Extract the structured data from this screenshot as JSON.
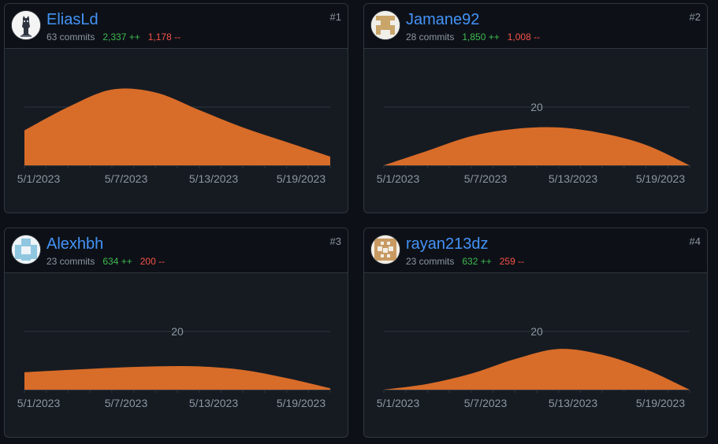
{
  "colors": {
    "area": "#d86c29",
    "grid": "#30363d",
    "axis": "#30363d",
    "link": "#4493f8",
    "adds": "#3fb950",
    "dels": "#f85149"
  },
  "contributors": [
    {
      "rank": "#1",
      "username": "EliasLd",
      "commits": "63 commits",
      "additions": "2,337 ++",
      "deletions": "1,178 --",
      "avatar_icon": "knight-avatar-icon"
    },
    {
      "rank": "#2",
      "username": "Jamane92",
      "commits": "28 commits",
      "additions": "1,850 ++",
      "deletions": "1,008 --",
      "avatar_icon": "identicon-gold-icon"
    },
    {
      "rank": "#3",
      "username": "Alexhbh",
      "commits": "23 commits",
      "additions": "634 ++",
      "deletions": "200 --",
      "avatar_icon": "identicon-lightblue-icon"
    },
    {
      "rank": "#4",
      "username": "rayan213dz",
      "commits": "23 commits",
      "additions": "632 ++",
      "deletions": "259 --",
      "avatar_icon": "identicon-tan-icon"
    }
  ],
  "chart_data": [
    {
      "type": "area",
      "x": [
        "5/1/2023",
        "5/4/2023",
        "5/7/2023",
        "5/10/2023",
        "5/13/2023",
        "5/16/2023",
        "5/19/2023",
        "5/22/2023"
      ],
      "values": [
        12,
        20,
        26,
        25,
        19,
        13,
        8,
        3
      ],
      "x_tick_labels": [
        "5/1/2023",
        "5/7/2023",
        "5/13/2023",
        "5/19/2023"
      ],
      "grid_label": "",
      "ylim": [
        0,
        40
      ],
      "grid": true
    },
    {
      "type": "area",
      "x": [
        "5/1/2023",
        "5/4/2023",
        "5/7/2023",
        "5/10/2023",
        "5/13/2023",
        "5/16/2023",
        "5/19/2023",
        "5/22/2023"
      ],
      "values": [
        0,
        5,
        10,
        12.5,
        13,
        11,
        7,
        0
      ],
      "x_tick_labels": [
        "5/1/2023",
        "5/7/2023",
        "5/13/2023",
        "5/19/2023"
      ],
      "grid_label": "20",
      "ylim": [
        0,
        40
      ],
      "grid": true
    },
    {
      "type": "area",
      "x": [
        "5/1/2023",
        "5/4/2023",
        "5/7/2023",
        "5/10/2023",
        "5/13/2023",
        "5/16/2023",
        "5/19/2023",
        "5/22/2023"
      ],
      "values": [
        6,
        6.8,
        7.5,
        8,
        8,
        6.8,
        4,
        0.5
      ],
      "x_tick_labels": [
        "5/1/2023",
        "5/7/2023",
        "5/13/2023",
        "5/19/2023"
      ],
      "grid_label": "20",
      "ylim": [
        0,
        40
      ],
      "grid": true
    },
    {
      "type": "area",
      "x": [
        "5/1/2023",
        "5/4/2023",
        "5/7/2023",
        "5/10/2023",
        "5/13/2023",
        "5/16/2023",
        "5/19/2023",
        "5/22/2023"
      ],
      "values": [
        0,
        2,
        5.5,
        10.5,
        14,
        12,
        7,
        0
      ],
      "x_tick_labels": [
        "5/1/2023",
        "5/7/2023",
        "5/13/2023",
        "5/19/2023"
      ],
      "grid_label": "20",
      "ylim": [
        0,
        40
      ],
      "grid": true
    }
  ]
}
